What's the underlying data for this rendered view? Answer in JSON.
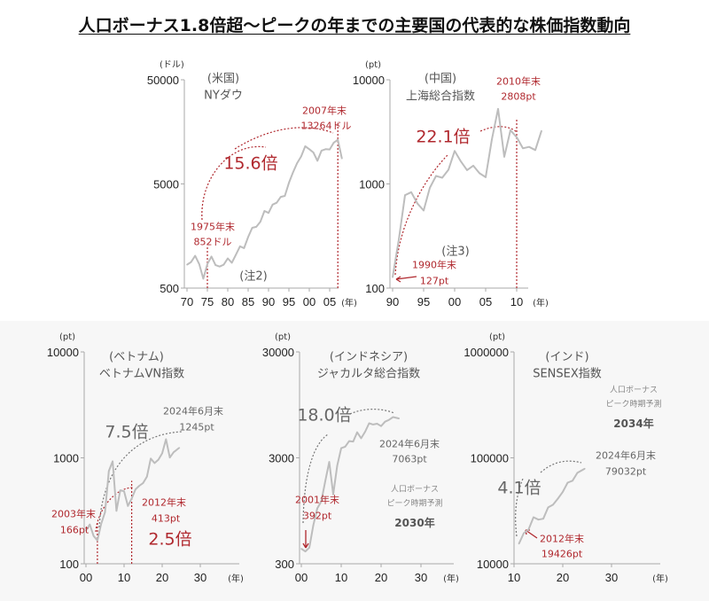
{
  "title": "人口ボーナス1.8倍超～ピークの年までの主要国の代表的な株価指数動向",
  "colors": {
    "line": "#bdbdbd",
    "highlight": "#b0282e",
    "neutral_arrow": "#777777"
  },
  "chart_data": [
    {
      "type": "line",
      "country": "(米国)",
      "series_label": "NYダウ",
      "unit": "(ドル)",
      "y_scale": "log",
      "ylim": [
        500,
        50000
      ],
      "y_ticks": [
        "500",
        "5000",
        "50000"
      ],
      "x_tick_labels": [
        "70",
        "75",
        "80",
        "85",
        "90",
        "95",
        "00",
        "05"
      ],
      "x_unit": "(年)",
      "x": [
        1970,
        1971,
        1972,
        1973,
        1974,
        1975,
        1976,
        1977,
        1978,
        1979,
        1980,
        1981,
        1982,
        1983,
        1984,
        1985,
        1986,
        1987,
        1988,
        1989,
        1990,
        1991,
        1992,
        1993,
        1994,
        1995,
        1996,
        1997,
        1998,
        1999,
        2000,
        2001,
        2002,
        2003,
        2004,
        2005,
        2006,
        2007,
        2008
      ],
      "values": [
        839,
        890,
        1020,
        851,
        616,
        852,
        1004,
        831,
        805,
        838,
        964,
        875,
        1046,
        1258,
        1211,
        1546,
        1895,
        1938,
        2168,
        2753,
        2633,
        3168,
        3301,
        3754,
        3834,
        5117,
        6448,
        7908,
        9181,
        11497,
        10787,
        10021,
        8341,
        10453,
        10783,
        10717,
        12463,
        13264,
        8776
      ],
      "annotations": {
        "start": "1975年末",
        "start_value": "852ドル",
        "end": "2007年末",
        "end_value": "13264ドル",
        "multiple": "15.6倍",
        "note": "(注2)"
      },
      "markers": [
        1975,
        2007
      ]
    },
    {
      "type": "line",
      "country": "(中国)",
      "series_label": "上海総合指数",
      "unit": "(pt)",
      "y_scale": "log",
      "ylim": [
        100,
        10000
      ],
      "y_ticks": [
        "100",
        "1000",
        "10000"
      ],
      "x_tick_labels": [
        "90",
        "95",
        "00",
        "05",
        "10"
      ],
      "x_unit": "(年)",
      "x": [
        1990,
        1991,
        1992,
        1993,
        1994,
        1995,
        1996,
        1997,
        1998,
        1999,
        2000,
        2001,
        2002,
        2003,
        2004,
        2005,
        2006,
        2007,
        2008,
        2009,
        2010,
        2011,
        2012,
        2013,
        2014
      ],
      "values": [
        127,
        292,
        780,
        833,
        648,
        555,
        917,
        1194,
        1147,
        1367,
        2073,
        1646,
        1358,
        1497,
        1267,
        1161,
        2675,
        5262,
        1821,
        3277,
        2808,
        2199,
        2269,
        2116,
        3235
      ],
      "annotations": {
        "start": "1990年末",
        "start_value": "127pt",
        "end": "2010年末",
        "end_value": "2808pt",
        "multiple": "22.1倍",
        "note": "(注3)"
      },
      "markers": [
        2010
      ]
    },
    {
      "type": "line",
      "country": "(ベトナム)",
      "series_label": "ベトナムVN指数",
      "unit": "(pt)",
      "y_scale": "log",
      "ylim": [
        100,
        10000
      ],
      "y_ticks": [
        "100",
        "1000",
        "10000"
      ],
      "x_tick_labels": [
        "00",
        "10",
        "20",
        "30"
      ],
      "x_unit": "(年)",
      "x": [
        2000,
        2001,
        2002,
        2003,
        2004,
        2005,
        2006,
        2007,
        2008,
        2009,
        2010,
        2011,
        2012,
        2013,
        2014,
        2015,
        2016,
        2017,
        2018,
        2019,
        2020,
        2021,
        2022,
        2023,
        2024.5
      ],
      "values": [
        206,
        235,
        183,
        166,
        239,
        307,
        751,
        927,
        316,
        494,
        484,
        351,
        413,
        505,
        545,
        579,
        665,
        984,
        892,
        961,
        1104,
        1498,
        1007,
        1130,
        1245
      ],
      "annotations": {
        "start": "2003年末",
        "start_value": "166pt",
        "mid": "2012年末",
        "mid_value": "413pt",
        "mid_multiple": "2.5倍",
        "end": "2024年6月末",
        "end_value": "1245pt",
        "multiple": "7.5倍"
      },
      "markers": [
        2003,
        2012
      ]
    },
    {
      "type": "line",
      "country": "(インドネシア)",
      "series_label": "ジャカルタ総合指数",
      "unit": "(pt)",
      "y_scale": "log",
      "ylim": [
        300,
        30000
      ],
      "y_ticks": [
        "300",
        "3000",
        "30000"
      ],
      "x_tick_labels": [
        "00",
        "10",
        "20",
        "30"
      ],
      "x_unit": "(年)",
      "x": [
        2000,
        2001,
        2002,
        2003,
        2004,
        2005,
        2006,
        2007,
        2008,
        2009,
        2010,
        2011,
        2012,
        2013,
        2014,
        2015,
        2016,
        2017,
        2018,
        2019,
        2020,
        2021,
        2022,
        2023,
        2024.5
      ],
      "values": [
        416,
        392,
        425,
        691,
        1000,
        1163,
        1806,
        2746,
        1355,
        2534,
        3704,
        3822,
        4317,
        4274,
        5227,
        4593,
        5297,
        6356,
        6195,
        6300,
        5979,
        6581,
        6851,
        7273,
        7063
      ],
      "annotations": {
        "start": "2001年末",
        "start_value": "392pt",
        "end": "2024年6月末",
        "end_value": "7063pt",
        "multiple": "18.0倍",
        "peak_label_1": "人口ボーナス",
        "peak_label_2": "ピーク時期予測",
        "peak_year": "2030年"
      },
      "markers": []
    },
    {
      "type": "line",
      "country": "(インド)",
      "series_label": "SENSEX指数",
      "unit": "(pt)",
      "y_scale": "log",
      "ylim": [
        10000,
        1000000
      ],
      "y_ticks": [
        "10000",
        "100000",
        "1000000"
      ],
      "x_tick_labels": [
        "10",
        "20",
        "30"
      ],
      "x_unit": "(年)",
      "x": [
        2011,
        2012,
        2013,
        2014,
        2015,
        2016,
        2017,
        2018,
        2019,
        2020,
        2021,
        2022,
        2023,
        2024.5
      ],
      "values": [
        15455,
        19426,
        21171,
        27499,
        26118,
        26626,
        34057,
        36068,
        41254,
        47751,
        58254,
        60841,
        72240,
        79032
      ],
      "annotations": {
        "start": "2012年末",
        "start_value": "19426pt",
        "end": "2024年6月末",
        "end_value": "79032pt",
        "multiple": "4.1倍",
        "peak_label_1": "人口ボーナス",
        "peak_label_2": "ピーク時期予測",
        "peak_year": "2034年"
      },
      "markers": []
    }
  ]
}
